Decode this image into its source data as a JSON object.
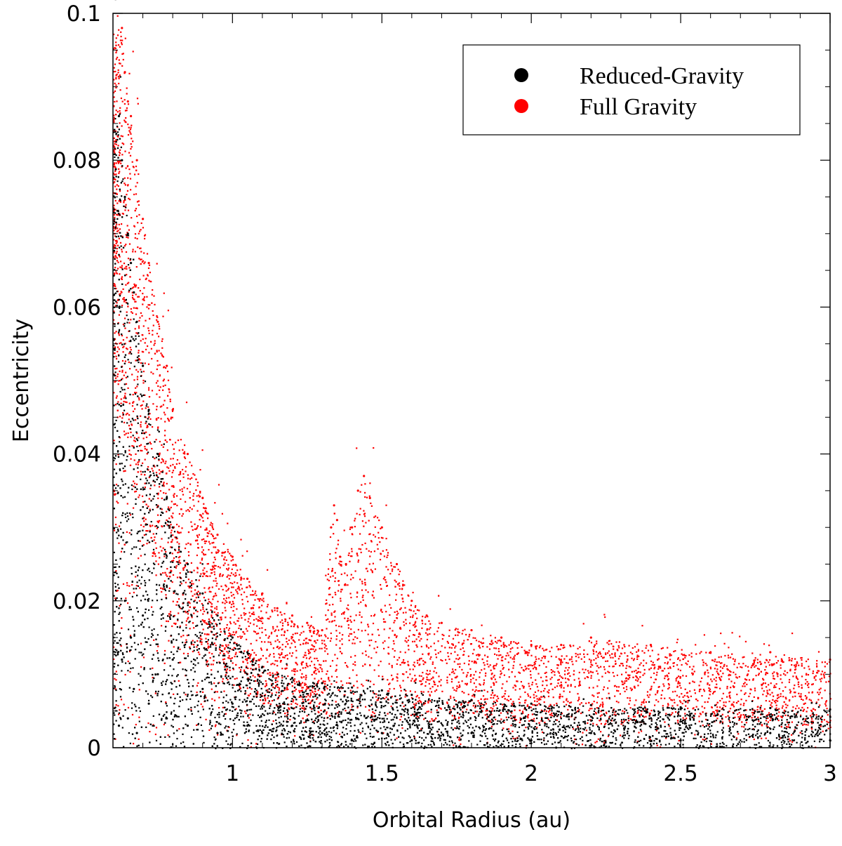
{
  "chart_data": {
    "type": "scatter",
    "xlabel": "Orbital Radius (au)",
    "ylabel": "Eccentricity",
    "xlim": [
      0.6,
      3.0
    ],
    "ylim": [
      0,
      0.1
    ],
    "x_ticks": [
      1,
      1.5,
      2,
      2.5,
      3
    ],
    "x_tick_labels": [
      "1",
      "1.5",
      "2",
      "2.5",
      "3"
    ],
    "y_ticks": [
      0,
      0.02,
      0.04,
      0.06,
      0.08,
      0.1
    ],
    "y_tick_labels": [
      "0",
      "0.02",
      "0.04",
      "0.06",
      "0.08",
      "0.1"
    ],
    "grid": false,
    "legend_position": "top-right",
    "series": [
      {
        "name": "Reduced-Gravity",
        "color": "#000000",
        "x": [
          0.62,
          0.62,
          0.63,
          0.63,
          0.64,
          0.64,
          0.65,
          0.65,
          0.66,
          0.66,
          0.67,
          0.67,
          0.68,
          0.68,
          0.7,
          0.7,
          0.72,
          0.72,
          0.75,
          0.75,
          0.78,
          0.78,
          0.8,
          0.8,
          0.85,
          0.85,
          0.9,
          0.9,
          0.95,
          0.95,
          1.0,
          1.0,
          1.05,
          1.05,
          1.1,
          1.1,
          1.2,
          1.2,
          1.3,
          1.3,
          1.4,
          1.4,
          1.5,
          1.5,
          1.6,
          1.6,
          1.8,
          1.8,
          2.0,
          2.0,
          2.2,
          2.2,
          2.5,
          2.5,
          2.8,
          2.8,
          3.0,
          3.0
        ],
        "y": [
          0.086,
          0.003,
          0.08,
          0.012,
          0.075,
          0.02,
          0.07,
          0.004,
          0.066,
          0.015,
          0.062,
          0.008,
          0.058,
          0.002,
          0.052,
          0.018,
          0.046,
          0.006,
          0.04,
          0.01,
          0.034,
          0.004,
          0.03,
          0.012,
          0.025,
          0.003,
          0.021,
          0.008,
          0.018,
          0.002,
          0.015,
          0.006,
          0.013,
          0.003,
          0.011,
          0.002,
          0.0095,
          0.003,
          0.0088,
          0.002,
          0.0082,
          0.001,
          0.0078,
          0.002,
          0.0072,
          0.001,
          0.0065,
          0.002,
          0.006,
          0.001,
          0.0058,
          0.002,
          0.0055,
          0.001,
          0.0054,
          0.002,
          0.0052,
          0.001
        ]
      },
      {
        "name": "Full Gravity",
        "color": "#ff0000",
        "x": [
          0.63,
          0.64,
          0.65,
          0.66,
          0.68,
          0.7,
          0.72,
          0.75,
          0.78,
          0.8,
          0.85,
          0.9,
          0.95,
          1.0,
          1.05,
          1.1,
          1.15,
          1.2,
          1.25,
          1.3,
          1.33,
          1.34,
          1.35,
          1.36,
          1.38,
          1.4,
          1.42,
          1.44,
          1.46,
          1.5,
          1.55,
          1.6,
          1.65,
          1.7,
          1.8,
          1.9,
          2.0,
          2.1,
          2.2,
          2.4,
          2.6,
          2.8,
          3.0
        ],
        "y": [
          0.098,
          0.092,
          0.088,
          0.086,
          0.08,
          0.072,
          0.066,
          0.058,
          0.052,
          0.046,
          0.04,
          0.034,
          0.029,
          0.026,
          0.023,
          0.021,
          0.019,
          0.018,
          0.017,
          0.016,
          0.03,
          0.033,
          0.031,
          0.026,
          0.025,
          0.03,
          0.035,
          0.037,
          0.034,
          0.03,
          0.025,
          0.02,
          0.018,
          0.017,
          0.016,
          0.015,
          0.014,
          0.014,
          0.015,
          0.014,
          0.013,
          0.013,
          0.012
        ]
      }
    ]
  }
}
